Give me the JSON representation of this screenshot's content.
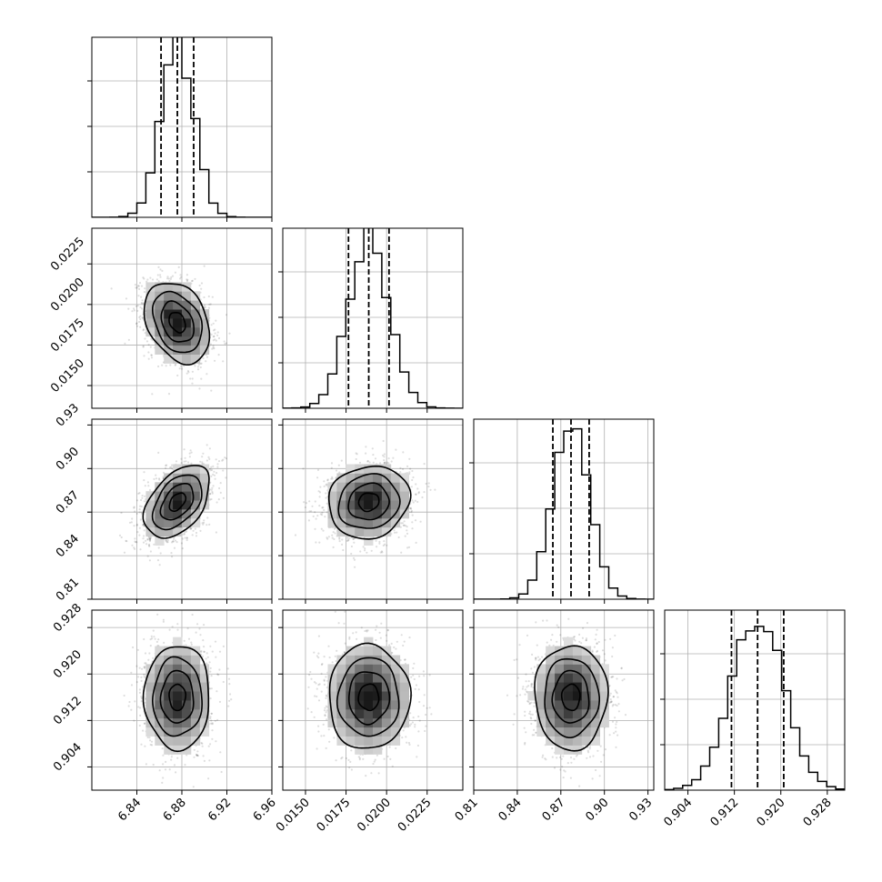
{
  "chart_data": {
    "type": "corner",
    "title": "",
    "grid": true,
    "parameters": [
      {
        "label": "",
        "mean": 6.876,
        "std": 0.0145,
        "quantiles": [
          6.8615,
          6.876,
          6.8905
        ],
        "range": [
          6.8,
          6.96
        ],
        "ticks": [
          6.84,
          6.88,
          6.92,
          6.96
        ],
        "tick_labels": [
          "6.84",
          "6.88",
          "6.92",
          "6.96"
        ]
      },
      {
        "label": "",
        "mean": 0.0189,
        "std": 0.00125,
        "quantiles": [
          0.01765,
          0.0189,
          0.02015
        ],
        "range": [
          0.0136,
          0.0247
        ],
        "ticks": [
          0.015,
          0.0175,
          0.02,
          0.0225
        ],
        "tick_labels": [
          "0.0150",
          "0.0175",
          "0.0200",
          "0.0225"
        ]
      },
      {
        "label": "",
        "mean": 0.877,
        "std": 0.0125,
        "quantiles": [
          0.8645,
          0.877,
          0.8895
        ],
        "range": [
          0.81,
          0.934
        ],
        "ticks": [
          0.81,
          0.84,
          0.87,
          0.9,
          0.93
        ],
        "tick_labels": [
          "0.81",
          "0.84",
          "0.87",
          "0.90",
          "0.93"
        ]
      },
      {
        "label": "",
        "mean": 0.916,
        "std": 0.0045,
        "quantiles": [
          0.9115,
          0.916,
          0.9205
        ],
        "range": [
          0.9,
          0.931
        ],
        "ticks": [
          0.904,
          0.912,
          0.92,
          0.928
        ],
        "tick_labels": [
          "0.904",
          "0.912",
          "0.920",
          "0.928"
        ]
      }
    ],
    "correlations": [
      {
        "pair": [
          0,
          1
        ],
        "rho": -0.3
      },
      {
        "pair": [
          0,
          2
        ],
        "rho": 0.45
      },
      {
        "pair": [
          0,
          3
        ],
        "rho": 0.0
      },
      {
        "pair": [
          1,
          2
        ],
        "rho": 0.1
      },
      {
        "pair": [
          1,
          3
        ],
        "rho": 0.0
      },
      {
        "pair": [
          2,
          3
        ],
        "rho": 0.0
      }
    ],
    "histogram_bins": 20,
    "density_bins": 20,
    "contour_levels": [
      0.5,
      1.0,
      1.5,
      2.0
    ],
    "quantile_line_style": "dashed"
  }
}
